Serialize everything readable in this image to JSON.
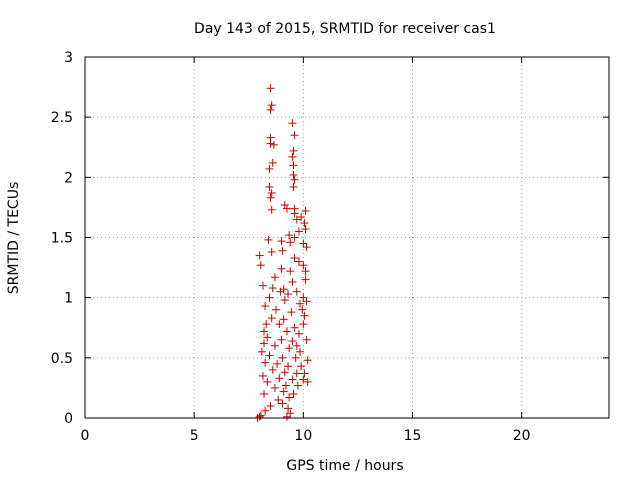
{
  "chart_data": {
    "type": "scatter",
    "title": "Day 143 of 2015, SRMTID for receiver cas1",
    "xlabel": "GPS time / hours",
    "ylabel": "SRMTID / TECUs",
    "xlim": [
      0,
      24
    ],
    "ylim": [
      0,
      3
    ],
    "grid": true,
    "marker": "+",
    "marker_color": "#cc0000",
    "x_ticks": [
      0,
      5,
      10,
      15,
      20
    ],
    "x_tick_labels": [
      "0",
      "5",
      "10",
      "15",
      "20"
    ],
    "y_ticks": [
      0,
      0.5,
      1,
      1.5,
      2,
      2.5,
      3
    ],
    "y_tick_labels": [
      "0",
      "0.5",
      "1",
      "1.5",
      "2",
      "2.5",
      "3"
    ],
    "series": [
      {
        "name": "cas1",
        "points": [
          [
            8.5,
            2.74
          ],
          [
            8.55,
            2.6
          ],
          [
            8.5,
            2.56
          ],
          [
            9.5,
            2.45
          ],
          [
            9.6,
            2.35
          ],
          [
            8.5,
            2.33
          ],
          [
            8.5,
            2.28
          ],
          [
            8.65,
            2.27
          ],
          [
            9.55,
            2.22
          ],
          [
            9.5,
            2.17
          ],
          [
            8.6,
            2.12
          ],
          [
            9.55,
            2.1
          ],
          [
            8.45,
            2.07
          ],
          [
            9.55,
            2.02
          ],
          [
            9.6,
            1.98
          ],
          [
            9.55,
            1.92
          ],
          [
            8.45,
            1.92
          ],
          [
            8.55,
            1.87
          ],
          [
            8.5,
            1.83
          ],
          [
            9.15,
            1.77
          ],
          [
            9.25,
            1.74
          ],
          [
            9.6,
            1.74
          ],
          [
            8.55,
            1.73
          ],
          [
            9.6,
            1.7
          ],
          [
            10.1,
            1.72
          ],
          [
            9.9,
            1.67
          ],
          [
            10.05,
            1.62
          ],
          [
            9.7,
            1.65
          ],
          [
            10.1,
            1.57
          ],
          [
            9.8,
            1.55
          ],
          [
            9.35,
            1.52
          ],
          [
            9.6,
            1.5
          ],
          [
            8.4,
            1.48
          ],
          [
            9.0,
            1.47
          ],
          [
            9.4,
            1.46
          ],
          [
            10.0,
            1.45
          ],
          [
            10.15,
            1.42
          ],
          [
            9.05,
            1.39
          ],
          [
            8.55,
            1.38
          ],
          [
            9.6,
            1.33
          ],
          [
            8.0,
            1.35
          ],
          [
            8.05,
            1.27
          ],
          [
            9.8,
            1.3
          ],
          [
            10.0,
            1.27
          ],
          [
            10.1,
            1.22
          ],
          [
            9.0,
            1.24
          ],
          [
            9.4,
            1.22
          ],
          [
            8.7,
            1.17
          ],
          [
            9.5,
            1.13
          ],
          [
            8.15,
            1.1
          ],
          [
            8.6,
            1.08
          ],
          [
            8.95,
            1.05
          ],
          [
            9.1,
            1.07
          ],
          [
            9.3,
            1.03
          ],
          [
            9.7,
            1.05
          ],
          [
            10.0,
            1.0
          ],
          [
            8.45,
            1.0
          ],
          [
            9.15,
            0.98
          ],
          [
            9.85,
            0.95
          ],
          [
            10.15,
            0.97
          ],
          [
            8.25,
            0.93
          ],
          [
            8.75,
            0.9
          ],
          [
            9.45,
            0.88
          ],
          [
            10.05,
            0.85
          ],
          [
            8.55,
            0.83
          ],
          [
            9.1,
            0.82
          ],
          [
            8.3,
            0.78
          ],
          [
            8.9,
            0.78
          ],
          [
            9.6,
            0.75
          ],
          [
            10.0,
            0.78
          ],
          [
            8.2,
            0.72
          ],
          [
            9.25,
            0.72
          ],
          [
            9.8,
            0.7
          ],
          [
            8.35,
            0.67
          ],
          [
            9.0,
            0.65
          ],
          [
            9.5,
            0.64
          ],
          [
            10.15,
            0.65
          ],
          [
            8.2,
            0.62
          ],
          [
            8.7,
            0.6
          ],
          [
            9.35,
            0.58
          ],
          [
            9.85,
            0.55
          ],
          [
            8.1,
            0.55
          ],
          [
            8.45,
            0.52
          ],
          [
            9.05,
            0.5
          ],
          [
            9.65,
            0.5
          ],
          [
            10.2,
            0.48
          ],
          [
            8.25,
            0.46
          ],
          [
            8.8,
            0.45
          ],
          [
            9.3,
            0.43
          ],
          [
            9.9,
            0.43
          ],
          [
            8.6,
            0.4
          ],
          [
            9.15,
            0.38
          ],
          [
            9.7,
            0.37
          ],
          [
            10.05,
            0.37
          ],
          [
            8.15,
            0.35
          ],
          [
            8.9,
            0.33
          ],
          [
            9.5,
            0.32
          ],
          [
            10.2,
            0.3
          ],
          [
            8.35,
            0.3
          ],
          [
            9.2,
            0.27
          ],
          [
            9.75,
            0.27
          ],
          [
            8.7,
            0.25
          ],
          [
            9.1,
            0.22
          ],
          [
            9.55,
            0.2
          ],
          [
            8.2,
            0.2
          ],
          [
            9.35,
            0.17
          ],
          [
            8.85,
            0.15
          ],
          [
            9.05,
            0.12
          ],
          [
            8.5,
            0.1
          ],
          [
            9.3,
            0.08
          ],
          [
            8.25,
            0.06
          ],
          [
            9.4,
            0.04
          ],
          [
            8.05,
            0.02
          ],
          [
            9.25,
            0.01
          ],
          [
            7.9,
            0.0
          ],
          [
            8.0,
            0.01
          ],
          [
            10.1,
            1.15
          ],
          [
            9.95,
            0.9
          ],
          [
            9.7,
            0.6
          ],
          [
            10.0,
            0.32
          ]
        ]
      }
    ]
  }
}
